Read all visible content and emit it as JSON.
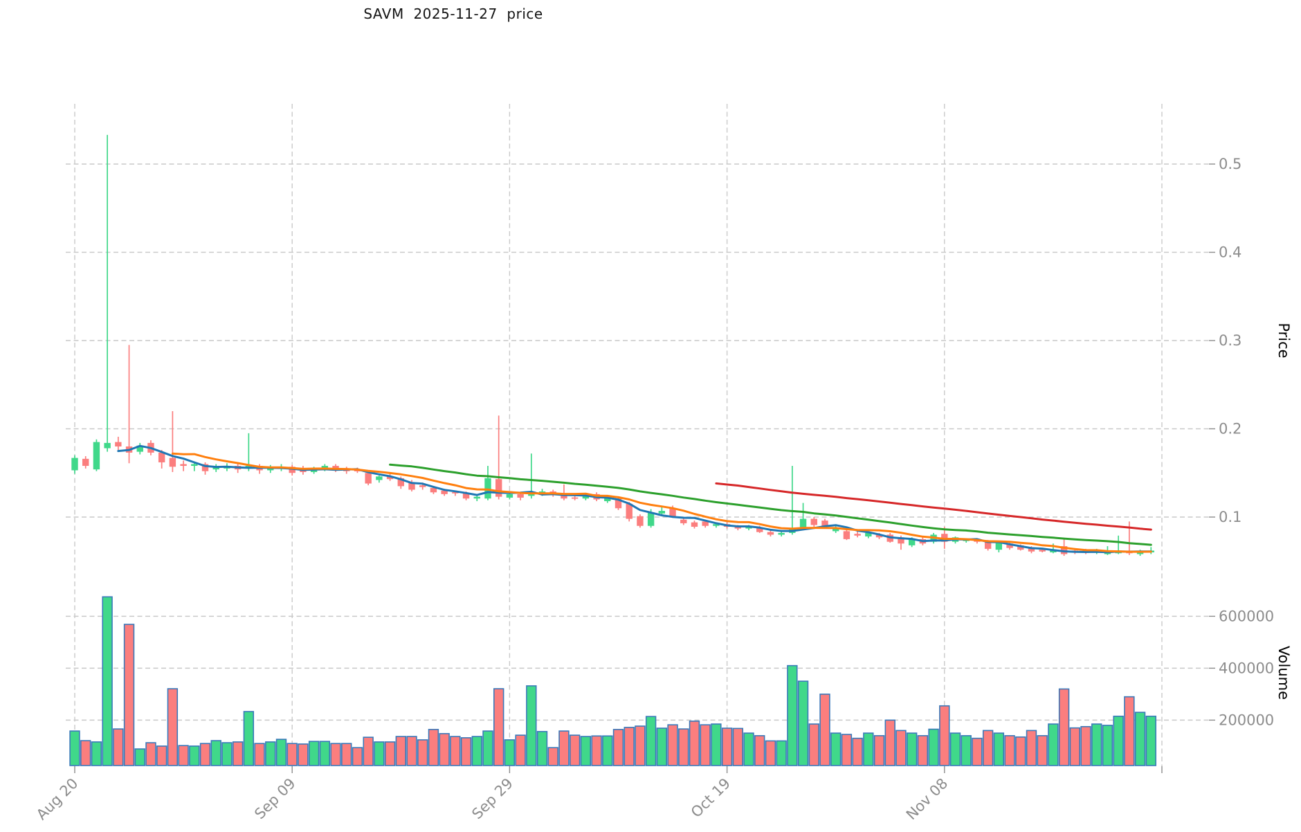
{
  "title": "SAVM  2025-11-27  price",
  "chart_data": {
    "type": "candlestick",
    "symbol": "SAVM",
    "as_of_date": "2025-11-27",
    "title": "SAVM  2025-11-27  price",
    "price_axis": {
      "label": "Price",
      "ticks": [
        0.1,
        0.2,
        0.3,
        0.4,
        0.5
      ],
      "tick_labels": [
        "0.1",
        "0.2",
        "0.3",
        "0.4",
        "0.5"
      ],
      "side": "right"
    },
    "volume_axis": {
      "label": "Volume",
      "ticks": [
        200000,
        400000,
        600000
      ],
      "tick_labels": [
        "200000",
        "400000",
        "600000"
      ],
      "side": "right"
    },
    "x_axis": {
      "tick_labels": [
        "Aug 20",
        "Sep 09",
        "Sep 29",
        "Oct 19",
        "Nov 08"
      ],
      "tick_day_offsets": [
        0,
        20,
        40,
        60,
        80
      ],
      "extra_gridline_offsets": [
        100
      ],
      "label_rotation_deg": 45
    },
    "grid": {
      "on": true,
      "style": "dashed"
    },
    "legend": "none",
    "moving_averages": [
      {
        "window": 5,
        "color": "#1f77b4"
      },
      {
        "window": 10,
        "color": "#ff7f0e"
      },
      {
        "window": 30,
        "color": "#2ca02c"
      },
      {
        "window": 60,
        "color": "#d62728"
      }
    ],
    "colors": {
      "up": "#40d88a",
      "down": "#fb7e7e",
      "volume_edge": "#3a79ba",
      "grid": "#c9c9c9",
      "tick_text": "#8c8c8c",
      "axis_label_text": "#000000",
      "title_text": "#141414",
      "background": "#ffffff"
    },
    "price_range_hint": [
      0.05,
      0.55
    ],
    "candles_format": [
      "open",
      "high",
      "low",
      "close",
      "volume"
    ],
    "candles": [
      [
        0.153,
        0.17,
        0.149,
        0.167,
        158000
      ],
      [
        0.166,
        0.169,
        0.155,
        0.158,
        121000
      ],
      [
        0.154,
        0.188,
        0.152,
        0.185,
        116000
      ],
      [
        0.178,
        0.533,
        0.174,
        0.184,
        675000
      ],
      [
        0.185,
        0.191,
        0.176,
        0.18,
        166000
      ],
      [
        0.18,
        0.295,
        0.161,
        0.173,
        569000
      ],
      [
        0.174,
        0.184,
        0.171,
        0.181,
        89000
      ],
      [
        0.184,
        0.187,
        0.17,
        0.173,
        113000
      ],
      [
        0.173,
        0.176,
        0.155,
        0.162,
        100000
      ],
      [
        0.167,
        0.22,
        0.151,
        0.157,
        321000
      ],
      [
        0.16,
        0.164,
        0.152,
        0.158,
        102000
      ],
      [
        0.158,
        0.163,
        0.152,
        0.16,
        100000
      ],
      [
        0.16,
        0.162,
        0.148,
        0.152,
        110000
      ],
      [
        0.154,
        0.16,
        0.151,
        0.157,
        121000
      ],
      [
        0.155,
        0.161,
        0.152,
        0.158,
        113000
      ],
      [
        0.158,
        0.161,
        0.15,
        0.154,
        116000
      ],
      [
        0.155,
        0.195,
        0.152,
        0.158,
        233000
      ],
      [
        0.158,
        0.16,
        0.149,
        0.153,
        110000
      ],
      [
        0.153,
        0.159,
        0.15,
        0.156,
        116000
      ],
      [
        0.155,
        0.16,
        0.152,
        0.157,
        126000
      ],
      [
        0.157,
        0.159,
        0.147,
        0.15,
        110000
      ],
      [
        0.154,
        0.158,
        0.148,
        0.151,
        108000
      ],
      [
        0.151,
        0.157,
        0.149,
        0.155,
        118000
      ],
      [
        0.155,
        0.16,
        0.152,
        0.158,
        118000
      ],
      [
        0.158,
        0.16,
        0.151,
        0.154,
        110000
      ],
      [
        0.154,
        0.157,
        0.149,
        0.152,
        110000
      ],
      [
        0.153,
        0.156,
        0.15,
        0.152,
        94000
      ],
      [
        0.15,
        0.152,
        0.136,
        0.138,
        134000
      ],
      [
        0.142,
        0.147,
        0.139,
        0.146,
        116000
      ],
      [
        0.146,
        0.149,
        0.141,
        0.143,
        116000
      ],
      [
        0.144,
        0.146,
        0.132,
        0.135,
        137000
      ],
      [
        0.139,
        0.142,
        0.129,
        0.131,
        137000
      ],
      [
        0.136,
        0.139,
        0.131,
        0.134,
        124000
      ],
      [
        0.133,
        0.135,
        0.126,
        0.128,
        164000
      ],
      [
        0.13,
        0.132,
        0.124,
        0.126,
        148000
      ],
      [
        0.128,
        0.13,
        0.124,
        0.127,
        137000
      ],
      [
        0.127,
        0.129,
        0.119,
        0.121,
        132000
      ],
      [
        0.121,
        0.125,
        0.118,
        0.123,
        137000
      ],
      [
        0.121,
        0.158,
        0.119,
        0.144,
        158000
      ],
      [
        0.143,
        0.215,
        0.12,
        0.123,
        321000
      ],
      [
        0.122,
        0.128,
        0.12,
        0.126,
        124000
      ],
      [
        0.126,
        0.128,
        0.119,
        0.122,
        142000
      ],
      [
        0.124,
        0.172,
        0.121,
        0.128,
        332000
      ],
      [
        0.126,
        0.132,
        0.124,
        0.129,
        156000
      ],
      [
        0.129,
        0.131,
        0.123,
        0.125,
        94000
      ],
      [
        0.125,
        0.137,
        0.119,
        0.121,
        158000
      ],
      [
        0.122,
        0.125,
        0.119,
        0.121,
        142000
      ],
      [
        0.121,
        0.127,
        0.119,
        0.126,
        137000
      ],
      [
        0.126,
        0.128,
        0.118,
        0.12,
        139000
      ],
      [
        0.118,
        0.124,
        0.116,
        0.122,
        139000
      ],
      [
        0.121,
        0.123,
        0.108,
        0.11,
        164000
      ],
      [
        0.115,
        0.117,
        0.095,
        0.098,
        172000
      ],
      [
        0.101,
        0.103,
        0.088,
        0.09,
        177000
      ],
      [
        0.09,
        0.109,
        0.088,
        0.105,
        214000
      ],
      [
        0.104,
        0.112,
        0.102,
        0.107,
        169000
      ],
      [
        0.11,
        0.113,
        0.099,
        0.101,
        182000
      ],
      [
        0.097,
        0.1,
        0.091,
        0.093,
        166000
      ],
      [
        0.094,
        0.096,
        0.087,
        0.089,
        196000
      ],
      [
        0.095,
        0.097,
        0.088,
        0.09,
        182000
      ],
      [
        0.09,
        0.094,
        0.088,
        0.092,
        185000
      ],
      [
        0.092,
        0.094,
        0.087,
        0.089,
        169000
      ],
      [
        0.089,
        0.091,
        0.085,
        0.087,
        168000
      ],
      [
        0.087,
        0.091,
        0.085,
        0.089,
        150000
      ],
      [
        0.088,
        0.09,
        0.082,
        0.083,
        140000
      ],
      [
        0.083,
        0.085,
        0.078,
        0.08,
        120000
      ],
      [
        0.08,
        0.084,
        0.078,
        0.082,
        120000
      ],
      [
        0.082,
        0.158,
        0.08,
        0.087,
        410000
      ],
      [
        0.087,
        0.116,
        0.085,
        0.098,
        350000
      ],
      [
        0.098,
        0.1,
        0.089,
        0.091,
        185000
      ],
      [
        0.096,
        0.098,
        0.088,
        0.09,
        300000
      ],
      [
        0.084,
        0.09,
        0.082,
        0.088,
        150000
      ],
      [
        0.084,
        0.086,
        0.074,
        0.075,
        145000
      ],
      [
        0.081,
        0.084,
        0.077,
        0.079,
        130000
      ],
      [
        0.078,
        0.083,
        0.076,
        0.082,
        150000
      ],
      [
        0.08,
        0.082,
        0.075,
        0.077,
        140000
      ],
      [
        0.08,
        0.082,
        0.071,
        0.072,
        200000
      ],
      [
        0.077,
        0.079,
        0.063,
        0.07,
        160000
      ],
      [
        0.068,
        0.077,
        0.066,
        0.075,
        150000
      ],
      [
        0.075,
        0.077,
        0.068,
        0.07,
        140000
      ],
      [
        0.072,
        0.082,
        0.07,
        0.08,
        165000
      ],
      [
        0.081,
        0.089,
        0.064,
        0.072,
        255000
      ],
      [
        0.072,
        0.078,
        0.07,
        0.077,
        150000
      ],
      [
        0.073,
        0.076,
        0.071,
        0.074,
        140000
      ],
      [
        0.075,
        0.076,
        0.07,
        0.072,
        130000
      ],
      [
        0.072,
        0.074,
        0.062,
        0.064,
        160000
      ],
      [
        0.063,
        0.073,
        0.06,
        0.071,
        150000
      ],
      [
        0.07,
        0.072,
        0.063,
        0.065,
        140000
      ],
      [
        0.068,
        0.069,
        0.062,
        0.063,
        135000
      ],
      [
        0.065,
        0.067,
        0.059,
        0.061,
        160000
      ],
      [
        0.063,
        0.065,
        0.06,
        0.061,
        140000
      ],
      [
        0.06,
        0.07,
        0.059,
        0.063,
        185000
      ],
      [
        0.067,
        0.076,
        0.056,
        0.058,
        320000
      ],
      [
        0.062,
        0.064,
        0.058,
        0.06,
        170000
      ],
      [
        0.063,
        0.064,
        0.058,
        0.06,
        175000
      ],
      [
        0.06,
        0.064,
        0.058,
        0.062,
        185000
      ],
      [
        0.058,
        0.067,
        0.057,
        0.061,
        180000
      ],
      [
        0.059,
        0.079,
        0.058,
        0.062,
        215000
      ],
      [
        0.062,
        0.095,
        0.057,
        0.059,
        290000
      ],
      [
        0.058,
        0.063,
        0.056,
        0.061,
        230000
      ],
      [
        0.06,
        0.066,
        0.058,
        0.062,
        215000
      ]
    ]
  }
}
